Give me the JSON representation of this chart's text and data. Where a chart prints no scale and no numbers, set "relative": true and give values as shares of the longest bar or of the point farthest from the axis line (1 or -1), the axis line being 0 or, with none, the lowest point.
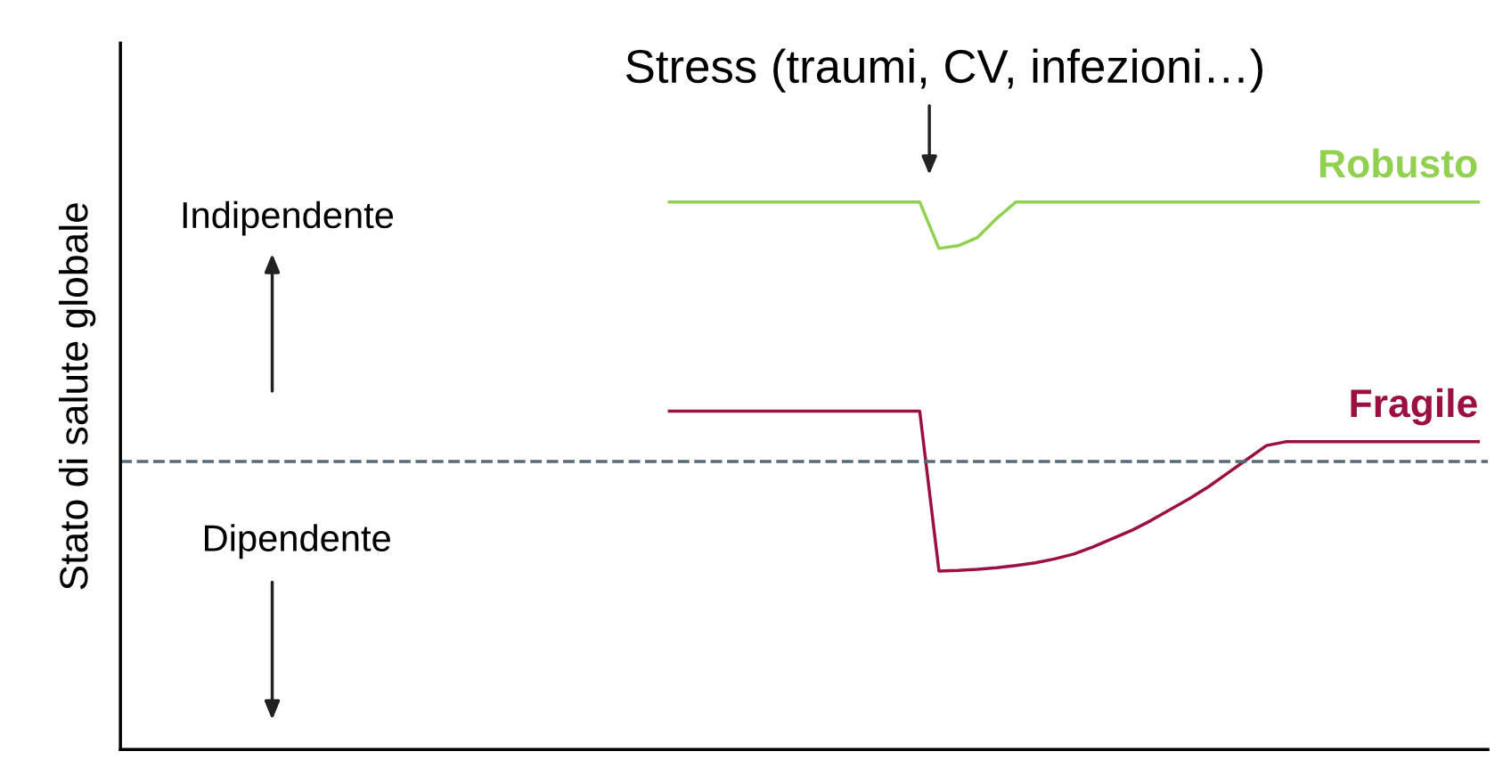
{
  "chart_data": {
    "type": "line",
    "relative": true,
    "ylabel": "Stato di salute globale",
    "legend": false,
    "marker": "none",
    "categories": [
      null,
      null,
      null,
      null,
      null,
      null,
      null,
      null,
      null,
      null,
      null,
      null,
      null,
      null,
      null,
      null,
      null,
      null,
      null,
      null,
      null,
      null,
      null,
      null,
      null,
      null,
      null,
      null,
      null,
      null,
      null,
      null,
      null,
      null,
      null,
      null,
      null,
      null,
      null,
      null,
      null,
      null,
      null,
      null,
      null,
      null,
      null,
      null,
      null,
      null,
      null,
      null,
      null,
      null,
      null,
      null,
      null,
      null,
      null,
      null,
      null,
      null,
      null,
      null,
      null,
      null,
      null,
      null,
      null,
      null,
      null
    ],
    "series": [
      {
        "name": "Robusto",
        "color": "#92d050",
        "values": [
          null,
          null,
          null,
          null,
          null,
          null,
          null,
          null,
          null,
          null,
          null,
          null,
          null,
          null,
          null,
          null,
          null,
          null,
          null,
          null,
          null,
          null,
          null,
          null,
          null,
          null,
          null,
          null,
          1,
          1,
          1,
          1,
          1,
          1,
          1,
          1,
          1,
          1,
          1,
          1,
          1,
          1,
          0.915,
          0.92,
          0.935,
          0.97,
          1,
          1,
          1,
          1,
          1,
          1,
          1,
          1,
          1,
          1,
          1,
          1,
          1,
          1,
          1,
          1,
          1,
          1,
          1,
          1,
          1,
          1,
          1,
          1,
          1
        ]
      },
      {
        "name": "Fragile",
        "color": "#9b1040",
        "values": [
          null,
          null,
          null,
          null,
          null,
          null,
          null,
          null,
          null,
          null,
          null,
          null,
          null,
          null,
          null,
          null,
          null,
          null,
          null,
          null,
          null,
          null,
          null,
          null,
          null,
          null,
          null,
          null,
          0.618,
          0.618,
          0.618,
          0.618,
          0.618,
          0.618,
          0.618,
          0.618,
          0.618,
          0.618,
          0.618,
          0.618,
          0.618,
          0.618,
          0.326,
          0.327,
          0.329,
          0.332,
          0.336,
          0.341,
          0.348,
          0.357,
          0.37,
          0.385,
          0.4,
          0.418,
          0.438,
          0.458,
          0.48,
          0.505,
          0.53,
          0.555,
          0.562,
          0.562,
          0.562,
          0.562,
          0.562,
          0.562,
          0.562,
          0.562,
          0.562,
          0.562,
          0.562
        ]
      }
    ],
    "ref_lines": [
      {
        "axis": "y",
        "value": 0.526,
        "color": "#5a6a75",
        "line_style": "dashed"
      }
    ],
    "annotations": [
      "Stress (traumi, CV, infezioni…)",
      "Indipendente",
      "Dipendente"
    ]
  }
}
